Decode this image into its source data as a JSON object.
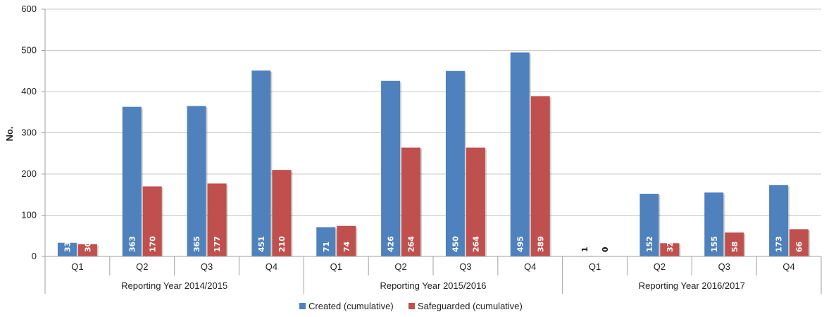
{
  "chart_data": {
    "type": "bar",
    "ylabel": "No.",
    "ylim": [
      0,
      600
    ],
    "yticks": [
      0,
      100,
      200,
      300,
      400,
      500,
      600
    ],
    "grid": true,
    "legend_position": "bottom",
    "groups": [
      {
        "label": "Reporting Year 2014/2015",
        "categories": [
          "Q1",
          "Q2",
          "Q3",
          "Q4"
        ]
      },
      {
        "label": "Reporting Year 2015/2016",
        "categories": [
          "Q1",
          "Q2",
          "Q3",
          "Q4"
        ]
      },
      {
        "label": "Reporting Year 2016/2017",
        "categories": [
          "Q1",
          "Q2",
          "Q3",
          "Q4"
        ]
      }
    ],
    "series": [
      {
        "name": "Created (cumulative)",
        "color": "#4f81bd",
        "values": [
          33,
          363,
          365,
          451,
          71,
          426,
          450,
          495,
          1,
          152,
          155,
          173
        ]
      },
      {
        "name": "Safeguarded (cumulative)",
        "color": "#c0504d",
        "values": [
          30,
          170,
          177,
          210,
          74,
          264,
          264,
          389,
          0,
          32,
          58,
          66
        ]
      }
    ]
  }
}
